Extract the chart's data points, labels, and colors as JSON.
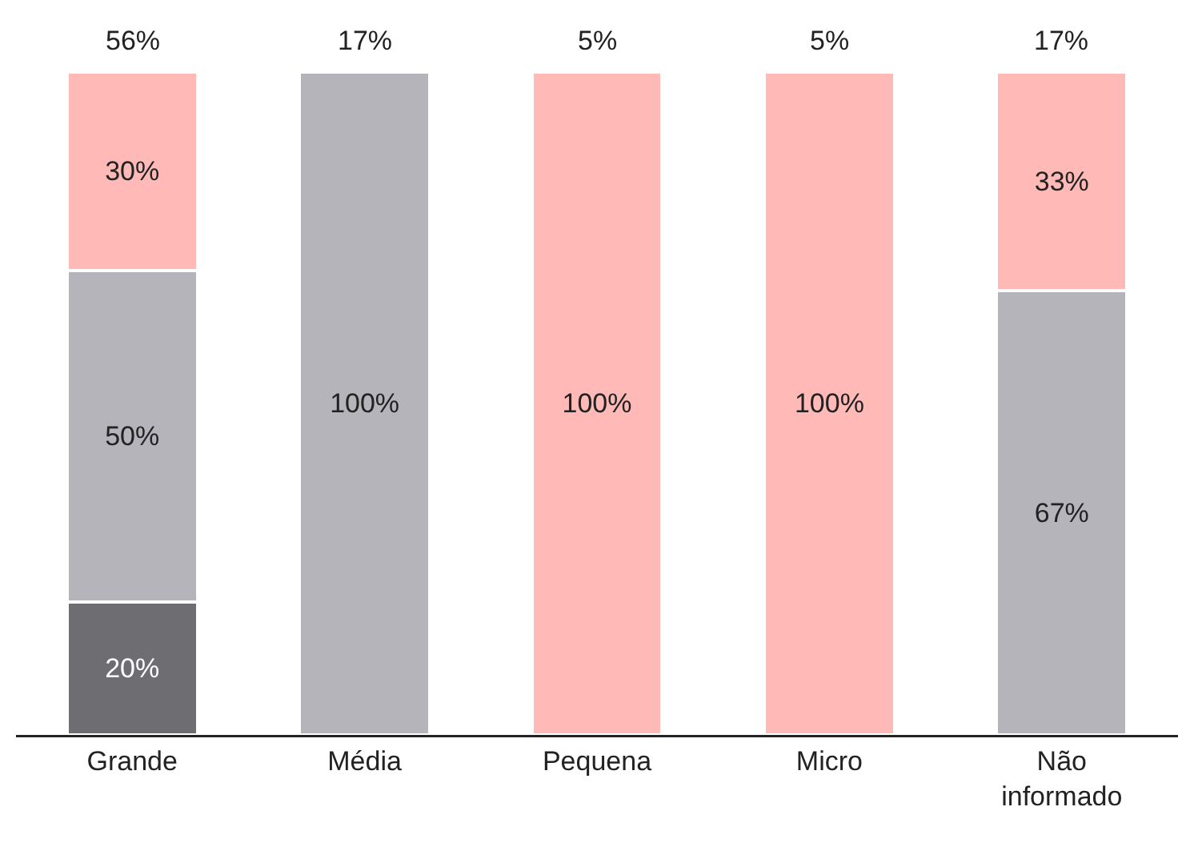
{
  "chart_data": {
    "type": "bar",
    "stacked": true,
    "categories": [
      "Grande",
      "Média",
      "Pequena",
      "Micro",
      "Não informado"
    ],
    "series": [
      {
        "color": "#6e6d72",
        "values": [
          20,
          null,
          null,
          null,
          null
        ],
        "value_labels": [
          "20%",
          null,
          null,
          null,
          null
        ]
      },
      {
        "color": "#b5b4bb",
        "values": [
          50,
          100,
          null,
          null,
          67
        ],
        "value_labels": [
          "50%",
          "100%",
          null,
          null,
          "67%"
        ]
      },
      {
        "color": "#ffb9b6",
        "values": [
          30,
          null,
          100,
          100,
          33
        ],
        "value_labels": [
          "30%",
          null,
          "100%",
          "100%",
          "33%"
        ]
      }
    ],
    "annotations": [
      {
        "text": "56%",
        "x": "Grande",
        "y": 100
      },
      {
        "text": "17%",
        "x": "Média",
        "y": 100
      },
      {
        "text": "5%",
        "x": "Pequena",
        "y": 100
      },
      {
        "text": "5%",
        "x": "Micro",
        "y": 100
      },
      {
        "text": "17%",
        "x": "Não informado",
        "y": 100
      }
    ]
  }
}
